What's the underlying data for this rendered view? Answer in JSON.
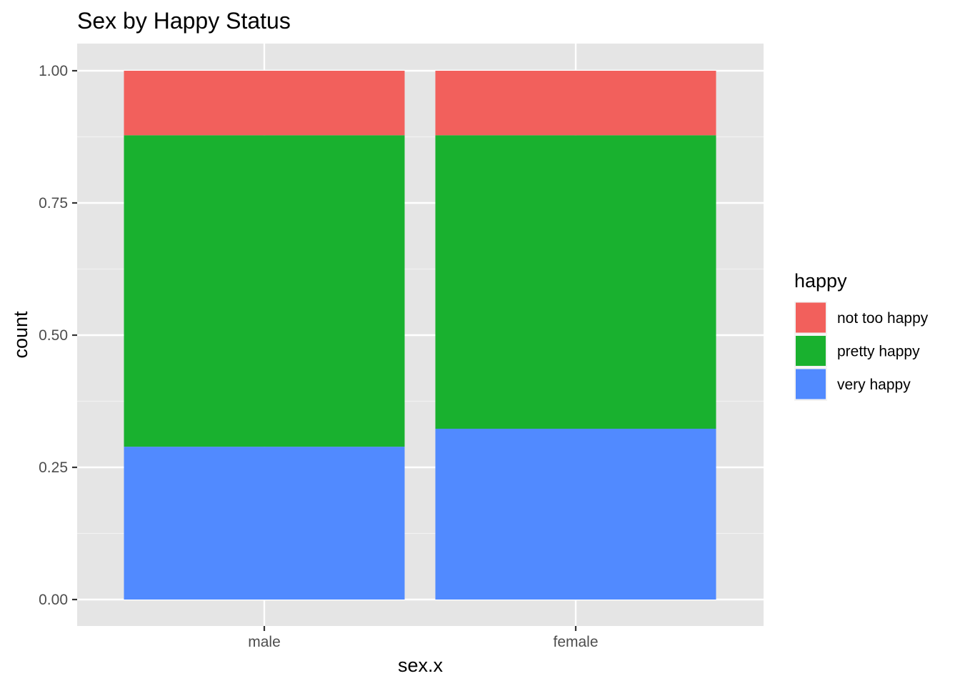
{
  "chart_data": {
    "type": "bar",
    "stacked": true,
    "title": "Sex by Happy Status",
    "xlabel": "sex.x",
    "ylabel": "count",
    "categories": [
      "male",
      "female"
    ],
    "ylim": [
      0,
      1
    ],
    "yticks": [
      "0.00",
      "0.25",
      "0.50",
      "0.75",
      "1.00"
    ],
    "series": [
      {
        "name": "very happy",
        "values": [
          0.289,
          0.323
        ],
        "color": "#518AFF"
      },
      {
        "name": "pretty happy",
        "values": [
          0.589,
          0.555
        ],
        "color": "#19B12F"
      },
      {
        "name": "not too happy",
        "values": [
          0.122,
          0.122
        ],
        "color": "#F2605C"
      }
    ],
    "grid": true,
    "legend": {
      "title": "happy",
      "placement": "right",
      "items": [
        "not too happy",
        "pretty happy",
        "very happy"
      ]
    }
  }
}
